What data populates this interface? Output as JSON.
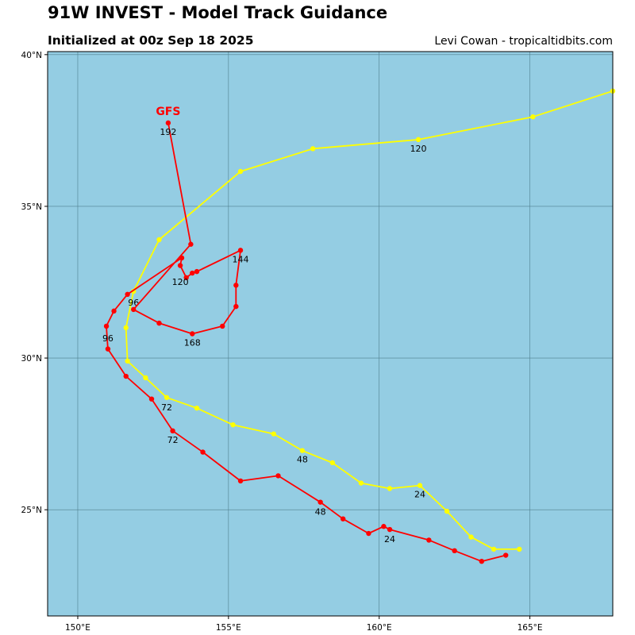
{
  "header": {
    "title": "91W INVEST - Model Track Guidance",
    "subtitle": "Initialized at 00z Sep 18 2025",
    "credit": "Levi Cowan - tropicaltidbits.com"
  },
  "map": {
    "lon_range": [
      149.0,
      167.75
    ],
    "lat_range": [
      21.5,
      40.1
    ],
    "ocean_color": "#94cde3",
    "grid_color": "#4f7f8e",
    "lon_ticks": [
      {
        "value": 150,
        "label": "150°E"
      },
      {
        "value": 155,
        "label": "155°E"
      },
      {
        "value": 160,
        "label": "160°E"
      },
      {
        "value": 165,
        "label": "165°E"
      }
    ],
    "lat_ticks": [
      {
        "value": 25,
        "label": "25°N"
      },
      {
        "value": 30,
        "label": "30°N"
      },
      {
        "value": 35,
        "label": "35°N"
      },
      {
        "value": 40,
        "label": "40°N"
      }
    ]
  },
  "tracks": [
    {
      "name": "GFS",
      "color": "#ff0000",
      "label": "GFS",
      "points": [
        [
          164.2,
          23.5
        ],
        [
          163.4,
          23.3
        ],
        [
          162.5,
          23.65
        ],
        [
          161.65,
          24.0
        ],
        [
          160.35,
          24.35
        ],
        [
          160.15,
          24.45
        ],
        [
          159.65,
          24.22
        ],
        [
          158.8,
          24.7
        ],
        [
          158.05,
          25.25
        ],
        [
          156.65,
          26.12
        ],
        [
          155.4,
          25.95
        ],
        [
          154.15,
          26.9
        ],
        [
          153.15,
          27.6
        ],
        [
          152.45,
          28.65
        ],
        [
          151.6,
          29.4
        ],
        [
          151.0,
          30.3
        ],
        [
          150.95,
          31.05
        ],
        [
          151.2,
          31.55
        ],
        [
          151.65,
          32.1
        ],
        [
          153.45,
          33.3
        ],
        [
          153.4,
          33.05
        ],
        [
          153.6,
          32.65
        ],
        [
          153.8,
          32.8
        ],
        [
          153.95,
          32.85
        ],
        [
          155.4,
          33.55
        ],
        [
          155.25,
          32.4
        ],
        [
          155.25,
          31.7
        ],
        [
          154.8,
          31.05
        ],
        [
          153.8,
          30.8
        ],
        [
          152.7,
          31.15
        ],
        [
          151.85,
          31.6
        ],
        [
          153.75,
          33.75
        ],
        [
          153.0,
          37.75
        ]
      ],
      "hour_labels": [
        {
          "text": "24",
          "lon": 160.35,
          "lat": 24.35,
          "dx": 0,
          "dy": 16
        },
        {
          "text": "48",
          "lon": 158.05,
          "lat": 25.25,
          "dx": 0,
          "dy": 16
        },
        {
          "text": "72",
          "lon": 153.15,
          "lat": 27.6,
          "dx": 0,
          "dy": 15
        },
        {
          "text": "96",
          "lon": 151.0,
          "lat": 30.95,
          "dx": 0,
          "dy": 15
        },
        {
          "text": "120",
          "lon": 153.4,
          "lat": 32.8,
          "dx": 0,
          "dy": 15
        },
        {
          "text": "144",
          "lon": 155.4,
          "lat": 33.55,
          "dx": 0,
          "dy": 15
        },
        {
          "text": "168",
          "lon": 153.8,
          "lat": 30.8,
          "dx": 0,
          "dy": 15
        },
        {
          "text": "192",
          "lon": 153.0,
          "lat": 37.75,
          "dx": 0,
          "dy": 15
        }
      ]
    },
    {
      "name": "yellow",
      "color": "#ffff00",
      "label": "",
      "points": [
        [
          164.65,
          23.7
        ],
        [
          163.8,
          23.7
        ],
        [
          163.05,
          24.1
        ],
        [
          162.25,
          24.95
        ],
        [
          161.35,
          25.8
        ],
        [
          160.35,
          25.7
        ],
        [
          159.4,
          25.88
        ],
        [
          158.45,
          26.55
        ],
        [
          157.45,
          26.95
        ],
        [
          156.5,
          27.5
        ],
        [
          155.15,
          27.8
        ],
        [
          153.95,
          28.35
        ],
        [
          152.95,
          28.7
        ],
        [
          152.25,
          29.35
        ],
        [
          151.65,
          29.9
        ],
        [
          151.6,
          31.0
        ],
        [
          151.85,
          32.2
        ],
        [
          152.7,
          33.9
        ],
        [
          155.4,
          36.15
        ],
        [
          157.8,
          36.9
        ],
        [
          161.3,
          37.2
        ],
        [
          165.1,
          37.95
        ],
        [
          167.75,
          38.8
        ]
      ],
      "hour_labels": [
        {
          "text": "24",
          "lon": 161.35,
          "lat": 25.8,
          "dx": 0,
          "dy": 15
        },
        {
          "text": "48",
          "lon": 157.45,
          "lat": 26.95,
          "dx": 0,
          "dy": 15
        },
        {
          "text": "72",
          "lon": 152.95,
          "lat": 28.7,
          "dx": 0,
          "dy": 16
        },
        {
          "text": "96",
          "lon": 151.85,
          "lat": 32.2,
          "dx": 0,
          "dy": 18
        },
        {
          "text": "120",
          "lon": 161.3,
          "lat": 37.2,
          "dx": 0,
          "dy": 15
        }
      ]
    }
  ]
}
